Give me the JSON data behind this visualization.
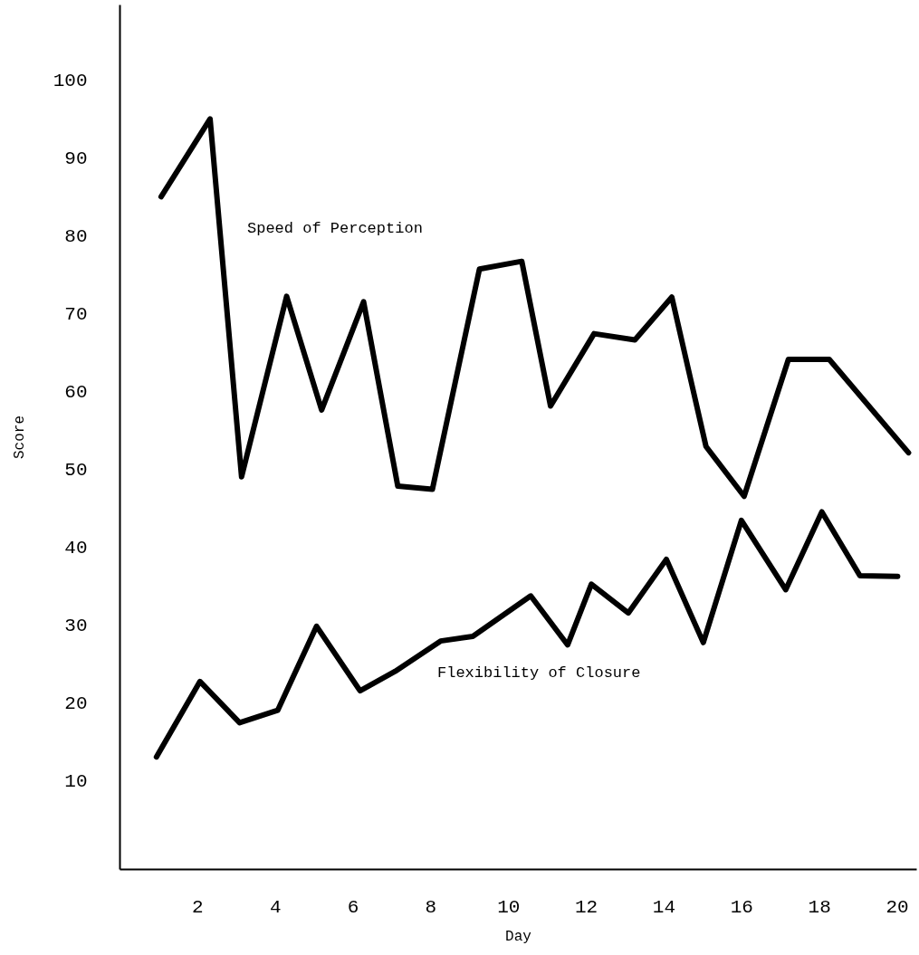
{
  "chart_data": {
    "type": "line",
    "xlabel": "Day",
    "ylabel": "Score",
    "xlim": [
      0,
      20.5
    ],
    "ylim": [
      -1.4,
      109.7
    ],
    "xticks": [
      2,
      4,
      6,
      8,
      10,
      12,
      14,
      16,
      18,
      20
    ],
    "yticks": [
      10,
      20,
      30,
      40,
      50,
      60,
      70,
      80,
      90,
      100
    ],
    "line_style": "solid",
    "series": [
      {
        "name": "Speed of Perception",
        "color": "#000000",
        "x": [
          1.07,
          2.33,
          3.14,
          4.3,
          5.2,
          6.28,
          7.16,
          8.05,
          9.26,
          10.35,
          11.09,
          12.21,
          13.26,
          14.21,
          15.09,
          16.07,
          17.21,
          18.26,
          20.3
        ],
        "values": [
          85,
          95,
          49,
          72.2,
          57.6,
          71.5,
          47.8,
          47.4,
          75.7,
          76.7,
          58.1,
          67.4,
          66.6,
          72.1,
          52.9,
          46.5,
          64.1,
          64.1,
          52.1
        ]
      },
      {
        "name": "Flexibility of Closure",
        "color": "#000000",
        "x": [
          0.95,
          2.07,
          3.09,
          4.07,
          5.07,
          6.19,
          7.09,
          8.26,
          9.09,
          10.58,
          11.53,
          12.14,
          13.09,
          14.07,
          15.02,
          16.0,
          17.14,
          18.07,
          19.05,
          20.02
        ],
        "values": [
          13,
          22.7,
          17.4,
          19,
          29.8,
          21.5,
          24,
          27.9,
          28.5,
          33.7,
          27.4,
          35.2,
          31.5,
          38.4,
          27.7,
          43.4,
          34.5,
          44.5,
          36.3,
          36.2
        ]
      }
    ]
  }
}
